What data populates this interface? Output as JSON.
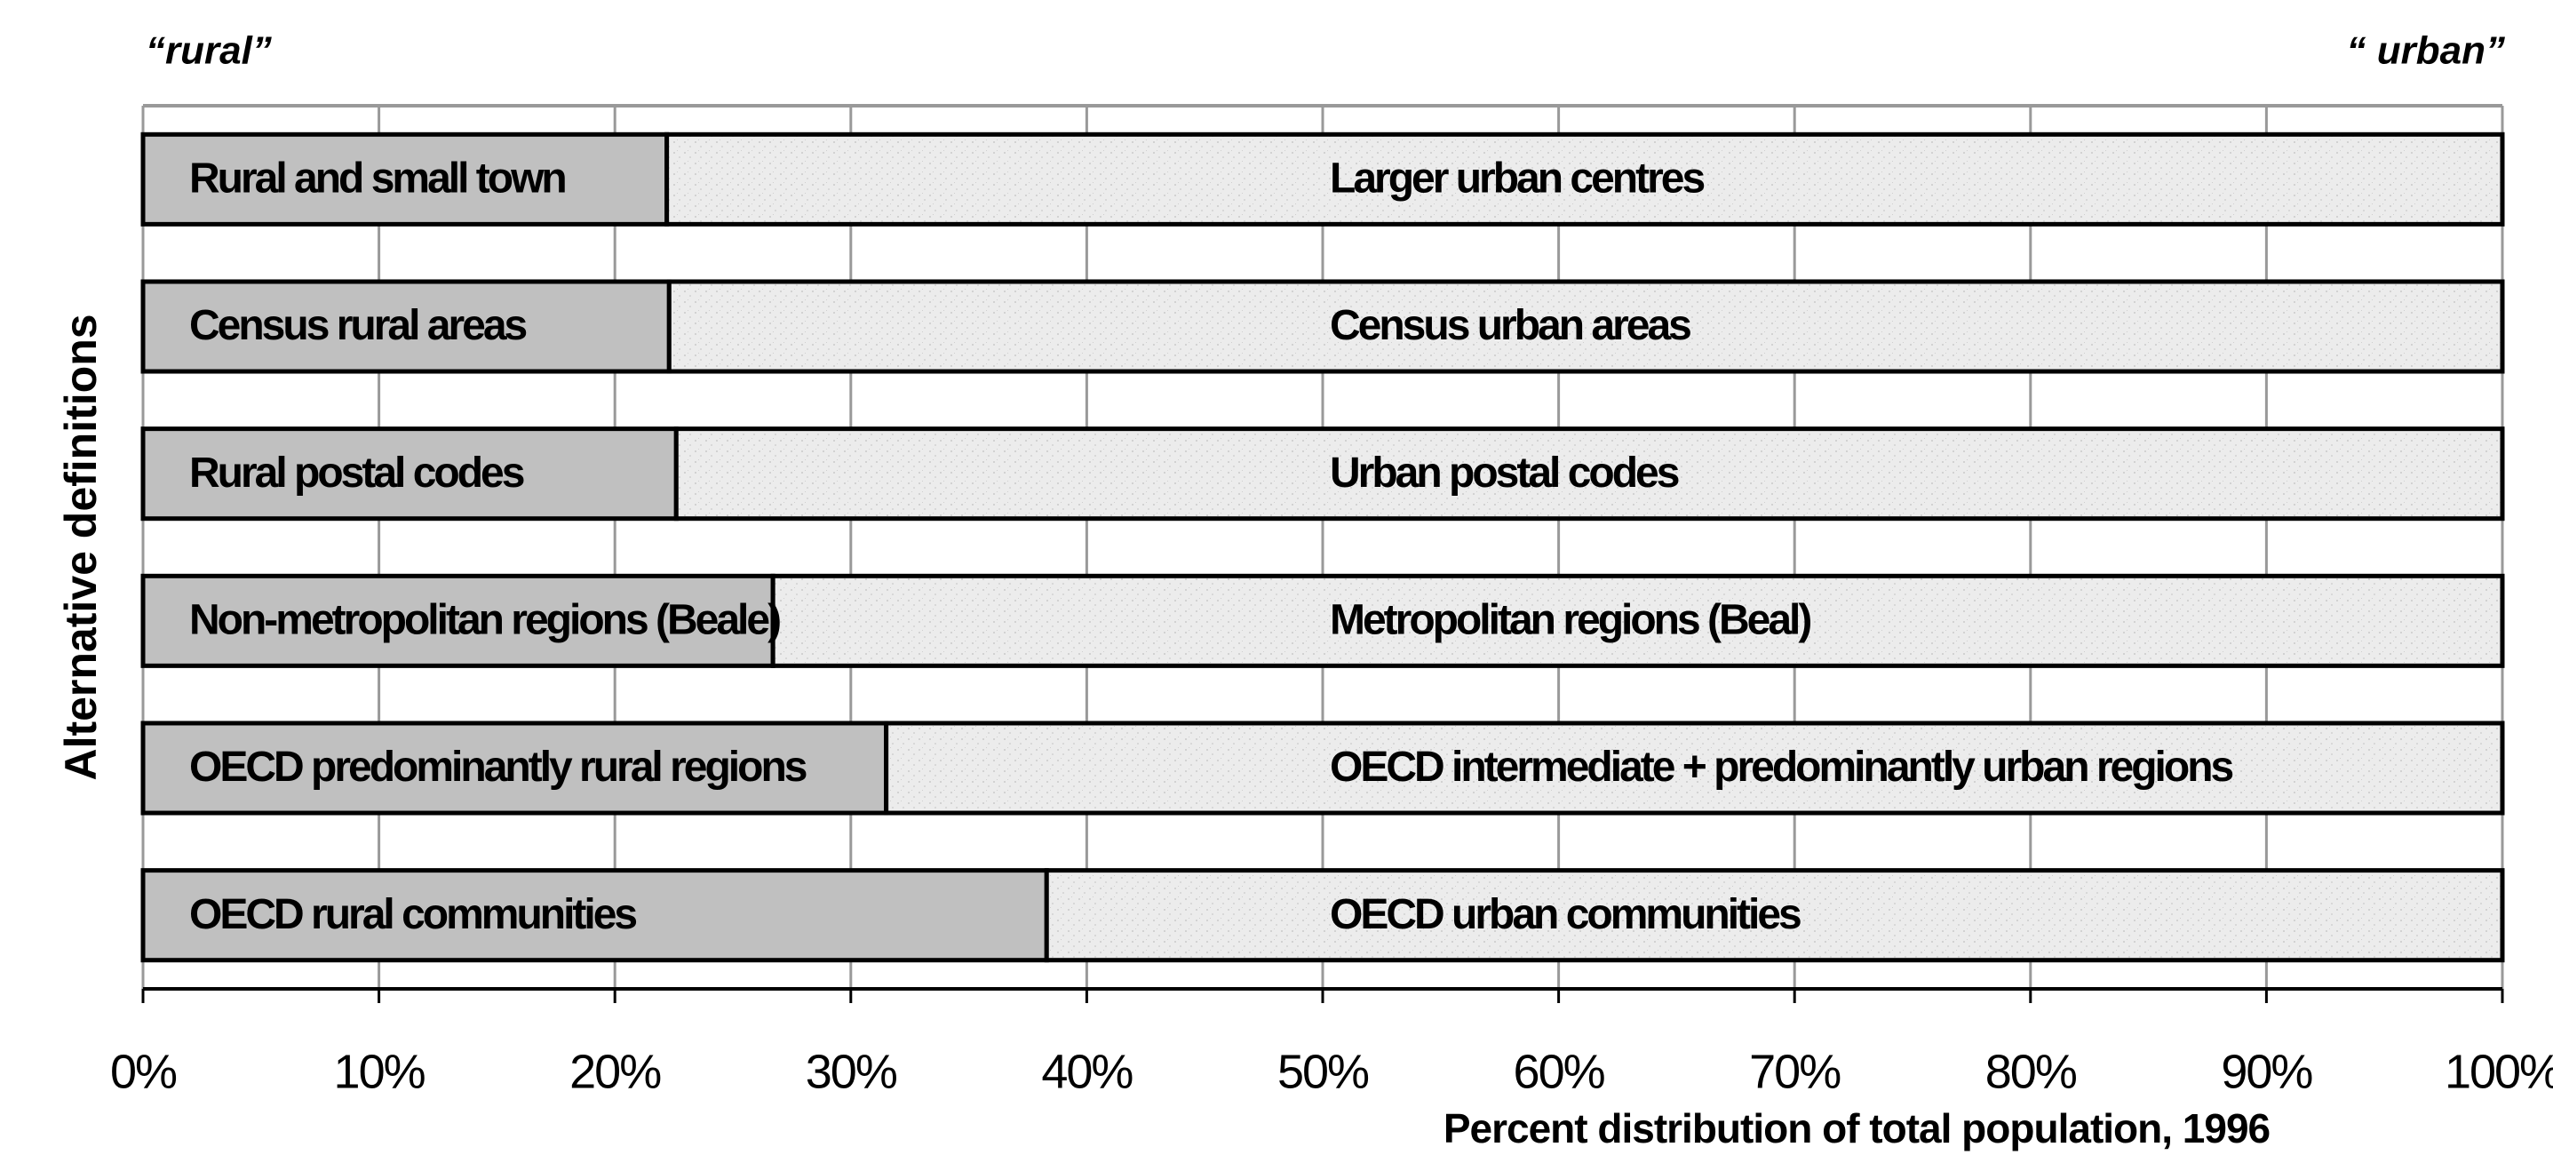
{
  "chart_data": {
    "type": "stacked_bar_horizontal",
    "ylabel": "Alternative definitions",
    "xlabel": "Percent distribution of total population, 1996",
    "xlim": [
      0,
      100
    ],
    "xticks": [
      {
        "value": 0,
        "label": "0%"
      },
      {
        "value": 10,
        "label": "10%"
      },
      {
        "value": 20,
        "label": "20%"
      },
      {
        "value": 30,
        "label": "30%"
      },
      {
        "value": 40,
        "label": "40%"
      },
      {
        "value": 50,
        "label": "50%"
      },
      {
        "value": 60,
        "label": "60%"
      },
      {
        "value": 70,
        "label": "70%"
      },
      {
        "value": 80,
        "label": "80%"
      },
      {
        "value": 90,
        "label": "90%"
      },
      {
        "value": 100,
        "label": "100%"
      }
    ],
    "grid": true,
    "series": [
      {
        "name": "“rural”",
        "color": "#c0c0c0",
        "values": [
          22.2,
          22.3,
          22.6,
          26.7,
          31.5,
          38.3
        ],
        "labels": [
          "Rural and small town",
          "Census rural areas",
          "Rural postal codes",
          "Non-metropolitan regions (Beale)",
          "OECD predominantly rural regions",
          "OECD rural communities"
        ]
      },
      {
        "name": "“ urban”",
        "color": "#ececec",
        "values": [
          77.8,
          77.7,
          77.4,
          73.3,
          68.5,
          61.7
        ],
        "labels": [
          "Larger urban centres",
          "Census urban areas",
          "Urban postal codes",
          "Metropolitan regions (Beal)",
          "OECD intermediate + predominantly urban regions",
          "OECD urban communities"
        ]
      }
    ]
  }
}
